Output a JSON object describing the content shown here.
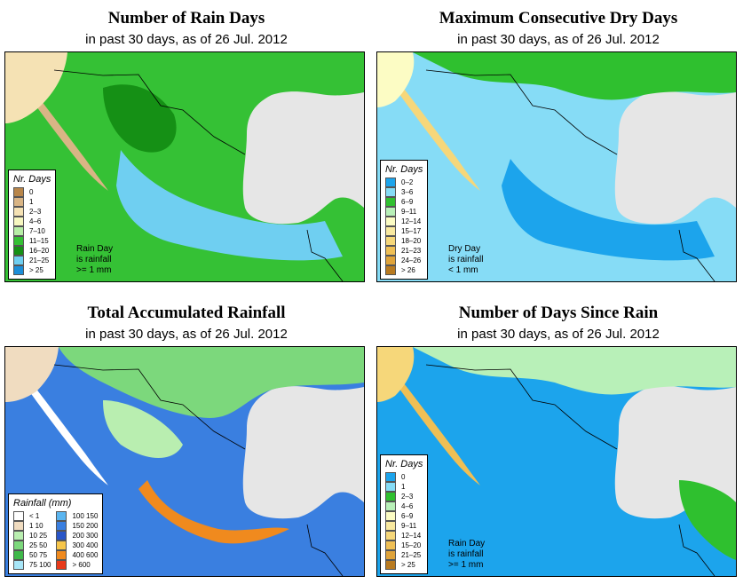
{
  "panels": [
    {
      "title": "Number of Rain Days",
      "subtitle": "in past 30 days, as of  26 Jul. 2012",
      "legend_title": "Nr. Days",
      "legend": [
        {
          "label": "0",
          "color": "#b8864a"
        },
        {
          "label": "1",
          "color": "#d9b585"
        },
        {
          "label": "2–3",
          "color": "#f5e2b4"
        },
        {
          "label": "4–6",
          "color": "#f7f7c0"
        },
        {
          "label": "7–10",
          "color": "#b7eea6"
        },
        {
          "label": "11–15",
          "color": "#35c135"
        },
        {
          "label": "16–20",
          "color": "#159015"
        },
        {
          "label": "21–25",
          "color": "#6fcff1"
        },
        {
          "label": "> 25",
          "color": "#1c8ed8"
        }
      ],
      "note": [
        "Rain Day",
        "is rainfall",
        ">= 1 mm"
      ]
    },
    {
      "title": "Maximum Consecutive Dry Days",
      "subtitle": "in past 30 days, as of  26 Jul. 2012",
      "legend_title": "Nr. Days",
      "legend": [
        {
          "label": "0–2",
          "color": "#1ca4ec"
        },
        {
          "label": "3–6",
          "color": "#86dcf6"
        },
        {
          "label": "6–9",
          "color": "#2fc02f"
        },
        {
          "label": "9–11",
          "color": "#b8f0b8"
        },
        {
          "label": "12–14",
          "color": "#fcfcc4"
        },
        {
          "label": "15–17",
          "color": "#f9e9a0"
        },
        {
          "label": "18–20",
          "color": "#f6d77a"
        },
        {
          "label": "21–23",
          "color": "#efbf55"
        },
        {
          "label": "24–26",
          "color": "#dfa33a"
        },
        {
          "label": "> 26",
          "color": "#b87a20"
        }
      ],
      "note": [
        "Dry Day",
        "is rainfall",
        "< 1 mm"
      ]
    },
    {
      "title": "Total Accumulated Rainfall",
      "subtitle": "in past 30 days, as of  26 Jul. 2012",
      "legend_title": "Rainfall (mm)",
      "legend": [
        {
          "label": "< 1",
          "color": "#ffffff"
        },
        {
          "label": "1  10",
          "color": "#f0dcc0"
        },
        {
          "label": "10  25",
          "color": "#b9eeb0"
        },
        {
          "label": "25  50",
          "color": "#7cd87c"
        },
        {
          "label": "50  75",
          "color": "#3fb84a"
        },
        {
          "label": "75  100",
          "color": "#a8e6f8"
        },
        {
          "label": "100  150",
          "color": "#5ab5f0"
        },
        {
          "label": "150  200",
          "color": "#3a7fe0"
        },
        {
          "label": "200  300",
          "color": "#2855c8"
        },
        {
          "label": "300  400",
          "color": "#f7c64a"
        },
        {
          "label": "400  600",
          "color": "#f08a1e"
        },
        {
          "label": "> 600",
          "color": "#e83a1a"
        }
      ]
    },
    {
      "title": "Number of Days Since Rain",
      "subtitle": "in past 30 days, as of  26 Jul. 2012",
      "legend_title": "Nr. Days",
      "legend": [
        {
          "label": "0",
          "color": "#1ca4ec"
        },
        {
          "label": "1",
          "color": "#86dcf6"
        },
        {
          "label": "2–3",
          "color": "#2fc02f"
        },
        {
          "label": "4–6",
          "color": "#b8f0b8"
        },
        {
          "label": "6–9",
          "color": "#fcfcc4"
        },
        {
          "label": "9–11",
          "color": "#f9e9a0"
        },
        {
          "label": "12–14",
          "color": "#f6d77a"
        },
        {
          "label": "15–20",
          "color": "#efbf55"
        },
        {
          "label": "21–25",
          "color": "#dfa33a"
        },
        {
          "label": "> 25",
          "color": "#b87a20"
        }
      ],
      "note": [
        "Rain Day",
        "is rainfall",
        ">= 1 mm"
      ]
    }
  ],
  "colors": {
    "ocean": "#e6e6e6",
    "border": "#000000"
  }
}
